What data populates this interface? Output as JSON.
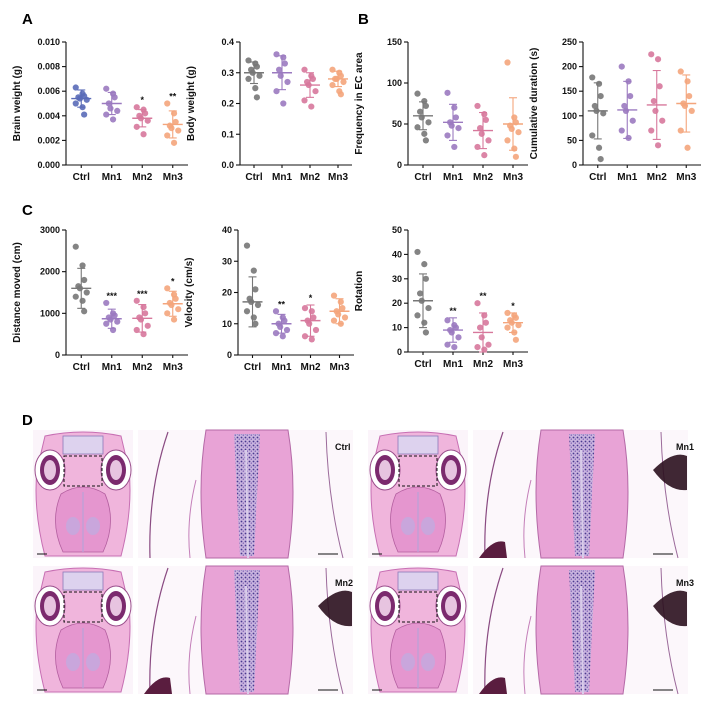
{
  "panels": {
    "a": "A",
    "b": "B",
    "c": "C",
    "d": "D"
  },
  "colors": {
    "Ctrl": "#5a6bb8",
    "Mn1": "#9b7ac0",
    "Mn2": "#d7789c",
    "Mn3": "#f4a57c",
    "Ctrl_gray": "#777777"
  },
  "chart_data": [
    {
      "id": "brain",
      "type": "scatter",
      "ylabel": "Brain weight (g)",
      "ylim": [
        0,
        0.01
      ],
      "yticks": [
        "0.000",
        "0.002",
        "0.004",
        "0.006",
        "0.008",
        "0.010"
      ],
      "categories": [
        "Ctrl",
        "Mn1",
        "Mn2",
        "Mn3"
      ],
      "colors": [
        "#5a6bb8",
        "#9b7ac0",
        "#d7789c",
        "#f4a57c"
      ],
      "points": [
        [
          0.0063,
          0.0058,
          0.0056,
          0.0055,
          0.0054,
          0.0053,
          0.005,
          0.0047,
          0.0041
        ],
        [
          0.0062,
          0.0058,
          0.0055,
          0.005,
          0.0046,
          0.0044,
          0.0041,
          0.0037
        ],
        [
          0.0047,
          0.0045,
          0.0042,
          0.004,
          0.0038,
          0.0036,
          0.0031,
          0.0025
        ],
        [
          0.005,
          0.0042,
          0.0035,
          0.0032,
          0.003,
          0.0028,
          0.0024,
          0.0018
        ]
      ],
      "mean": [
        0.0054,
        0.005,
        0.0038,
        0.0033
      ],
      "sd": [
        0.0007,
        0.0009,
        0.0007,
        0.0011
      ],
      "stars": [
        "",
        "",
        "*",
        "**"
      ]
    },
    {
      "id": "body",
      "type": "scatter",
      "ylabel": "Body weight (g)",
      "ylim": [
        0,
        0.4
      ],
      "yticks": [
        "0.0",
        "0.1",
        "0.2",
        "0.3",
        "0.4"
      ],
      "categories": [
        "Ctrl",
        "Mn1",
        "Mn2",
        "Mn3"
      ],
      "colors": [
        "#777777",
        "#9b7ac0",
        "#d7789c",
        "#f4a57c"
      ],
      "points": [
        [
          0.34,
          0.33,
          0.32,
          0.31,
          0.3,
          0.29,
          0.28,
          0.25,
          0.22
        ],
        [
          0.36,
          0.35,
          0.33,
          0.31,
          0.29,
          0.27,
          0.24,
          0.2
        ],
        [
          0.31,
          0.29,
          0.28,
          0.27,
          0.26,
          0.24,
          0.21,
          0.19
        ],
        [
          0.31,
          0.3,
          0.29,
          0.28,
          0.28,
          0.27,
          0.26,
          0.24,
          0.23
        ]
      ],
      "mean": [
        0.3,
        0.3,
        0.26,
        0.28
      ],
      "sd": [
        0.035,
        0.055,
        0.04,
        0.025
      ],
      "stars": [
        "",
        "",
        "",
        ""
      ]
    },
    {
      "id": "freq",
      "type": "scatter",
      "ylabel": "Frequency in EC area",
      "ylim": [
        0,
        150
      ],
      "yticks": [
        "0",
        "50",
        "100",
        "150"
      ],
      "categories": [
        "Ctrl",
        "Mn1",
        "Mn2",
        "Mn3"
      ],
      "colors": [
        "#777777",
        "#9b7ac0",
        "#d7789c",
        "#f4a57c"
      ],
      "points": [
        [
          87,
          78,
          72,
          65,
          58,
          52,
          46,
          38,
          30
        ],
        [
          88,
          70,
          58,
          52,
          48,
          45,
          36,
          22
        ],
        [
          72,
          62,
          55,
          45,
          38,
          30,
          22,
          12
        ],
        [
          125,
          58,
          52,
          48,
          44,
          40,
          30,
          20,
          10
        ]
      ],
      "mean": [
        60,
        52,
        42,
        50
      ],
      "sd": [
        17,
        22,
        22,
        32
      ],
      "stars": [
        "",
        "",
        "",
        ""
      ]
    },
    {
      "id": "cumdur",
      "type": "scatter",
      "ylabel": "Cumulative duration (s)",
      "ylim": [
        0,
        250
      ],
      "yticks": [
        "0",
        "50",
        "100",
        "150",
        "200",
        "250"
      ],
      "categories": [
        "Ctrl",
        "Mn1",
        "Mn2",
        "Mn3"
      ],
      "colors": [
        "#777777",
        "#9b7ac0",
        "#d7789c",
        "#f4a57c"
      ],
      "points": [
        [
          178,
          165,
          140,
          120,
          110,
          105,
          60,
          35,
          12
        ],
        [
          200,
          170,
          140,
          120,
          110,
          90,
          70,
          55
        ],
        [
          225,
          215,
          160,
          130,
          110,
          90,
          70,
          40
        ],
        [
          190,
          170,
          140,
          125,
          120,
          110,
          70,
          35
        ]
      ],
      "mean": [
        110,
        112,
        122,
        125
      ],
      "sd": [
        57,
        58,
        70,
        58
      ],
      "stars": [
        "",
        "",
        "",
        ""
      ]
    },
    {
      "id": "distance",
      "type": "scatter",
      "ylabel": "Distance moved (cm)",
      "ylim": [
        0,
        3000
      ],
      "yticks": [
        "0",
        "1000",
        "2000",
        "3000"
      ],
      "categories": [
        "Ctrl",
        "Mn1",
        "Mn2",
        "Mn3"
      ],
      "colors": [
        "#777777",
        "#9b7ac0",
        "#d7789c",
        "#f4a57c"
      ],
      "points": [
        [
          2600,
          2150,
          1800,
          1650,
          1600,
          1500,
          1400,
          1300,
          1050
        ],
        [
          1250,
          1000,
          950,
          900,
          850,
          800,
          750,
          600
        ],
        [
          1300,
          1150,
          1000,
          900,
          850,
          700,
          600,
          500
        ],
        [
          1600,
          1450,
          1350,
          1250,
          1200,
          1100,
          1000,
          850
        ]
      ],
      "mean": [
        1600,
        870,
        880,
        1230
      ],
      "sd": [
        480,
        230,
        330,
        300
      ],
      "stars": [
        "",
        "***",
        "***",
        "*"
      ]
    },
    {
      "id": "velocity",
      "type": "scatter",
      "ylabel": "Velocity (cm/s)",
      "ylim": [
        0,
        40
      ],
      "yticks": [
        "0",
        "10",
        "20",
        "30",
        "40"
      ],
      "categories": [
        "Ctrl",
        "Mn1",
        "Mn2",
        "Mn3"
      ],
      "colors": [
        "#777777",
        "#9b7ac0",
        "#d7789c",
        "#f4a57c"
      ],
      "points": [
        [
          35,
          27,
          21,
          18,
          17,
          16,
          14,
          12,
          10
        ],
        [
          14,
          12,
          11,
          10,
          9,
          8,
          7,
          6
        ],
        [
          15,
          14,
          12,
          11,
          10,
          8,
          6,
          5
        ],
        [
          19,
          17,
          15,
          14,
          13,
          12,
          11,
          10
        ]
      ],
      "mean": [
        17,
        10,
        11,
        14
      ],
      "sd": [
        8,
        3,
        5,
        4
      ],
      "stars": [
        "",
        "**",
        "*",
        ""
      ]
    },
    {
      "id": "rotation",
      "type": "scatter",
      "ylabel": "Rotation",
      "ylim": [
        0,
        50
      ],
      "yticks": [
        "0",
        "10",
        "20",
        "30",
        "40",
        "50"
      ],
      "categories": [
        "Ctrl",
        "Mn1",
        "Mn2",
        "Mn3"
      ],
      "colors": [
        "#777777",
        "#9b7ac0",
        "#d7789c",
        "#f4a57c"
      ],
      "points": [
        [
          41,
          36,
          30,
          24,
          21,
          18,
          15,
          12,
          8
        ],
        [
          13,
          11,
          10,
          9,
          8,
          6,
          3,
          2
        ],
        [
          20,
          15,
          12,
          10,
          6,
          3,
          2,
          1
        ],
        [
          16,
          15,
          14,
          13,
          12,
          11,
          10,
          8,
          5
        ]
      ],
      "mean": [
        21,
        9,
        8,
        12
      ],
      "sd": [
        11,
        5,
        8,
        4
      ],
      "stars": [
        "",
        "**",
        "**",
        "*"
      ]
    }
  ],
  "histology": [
    {
      "label": "Ctrl"
    },
    {
      "label": "Mn1"
    },
    {
      "label": "Mn2"
    },
    {
      "label": "Mn3"
    }
  ]
}
